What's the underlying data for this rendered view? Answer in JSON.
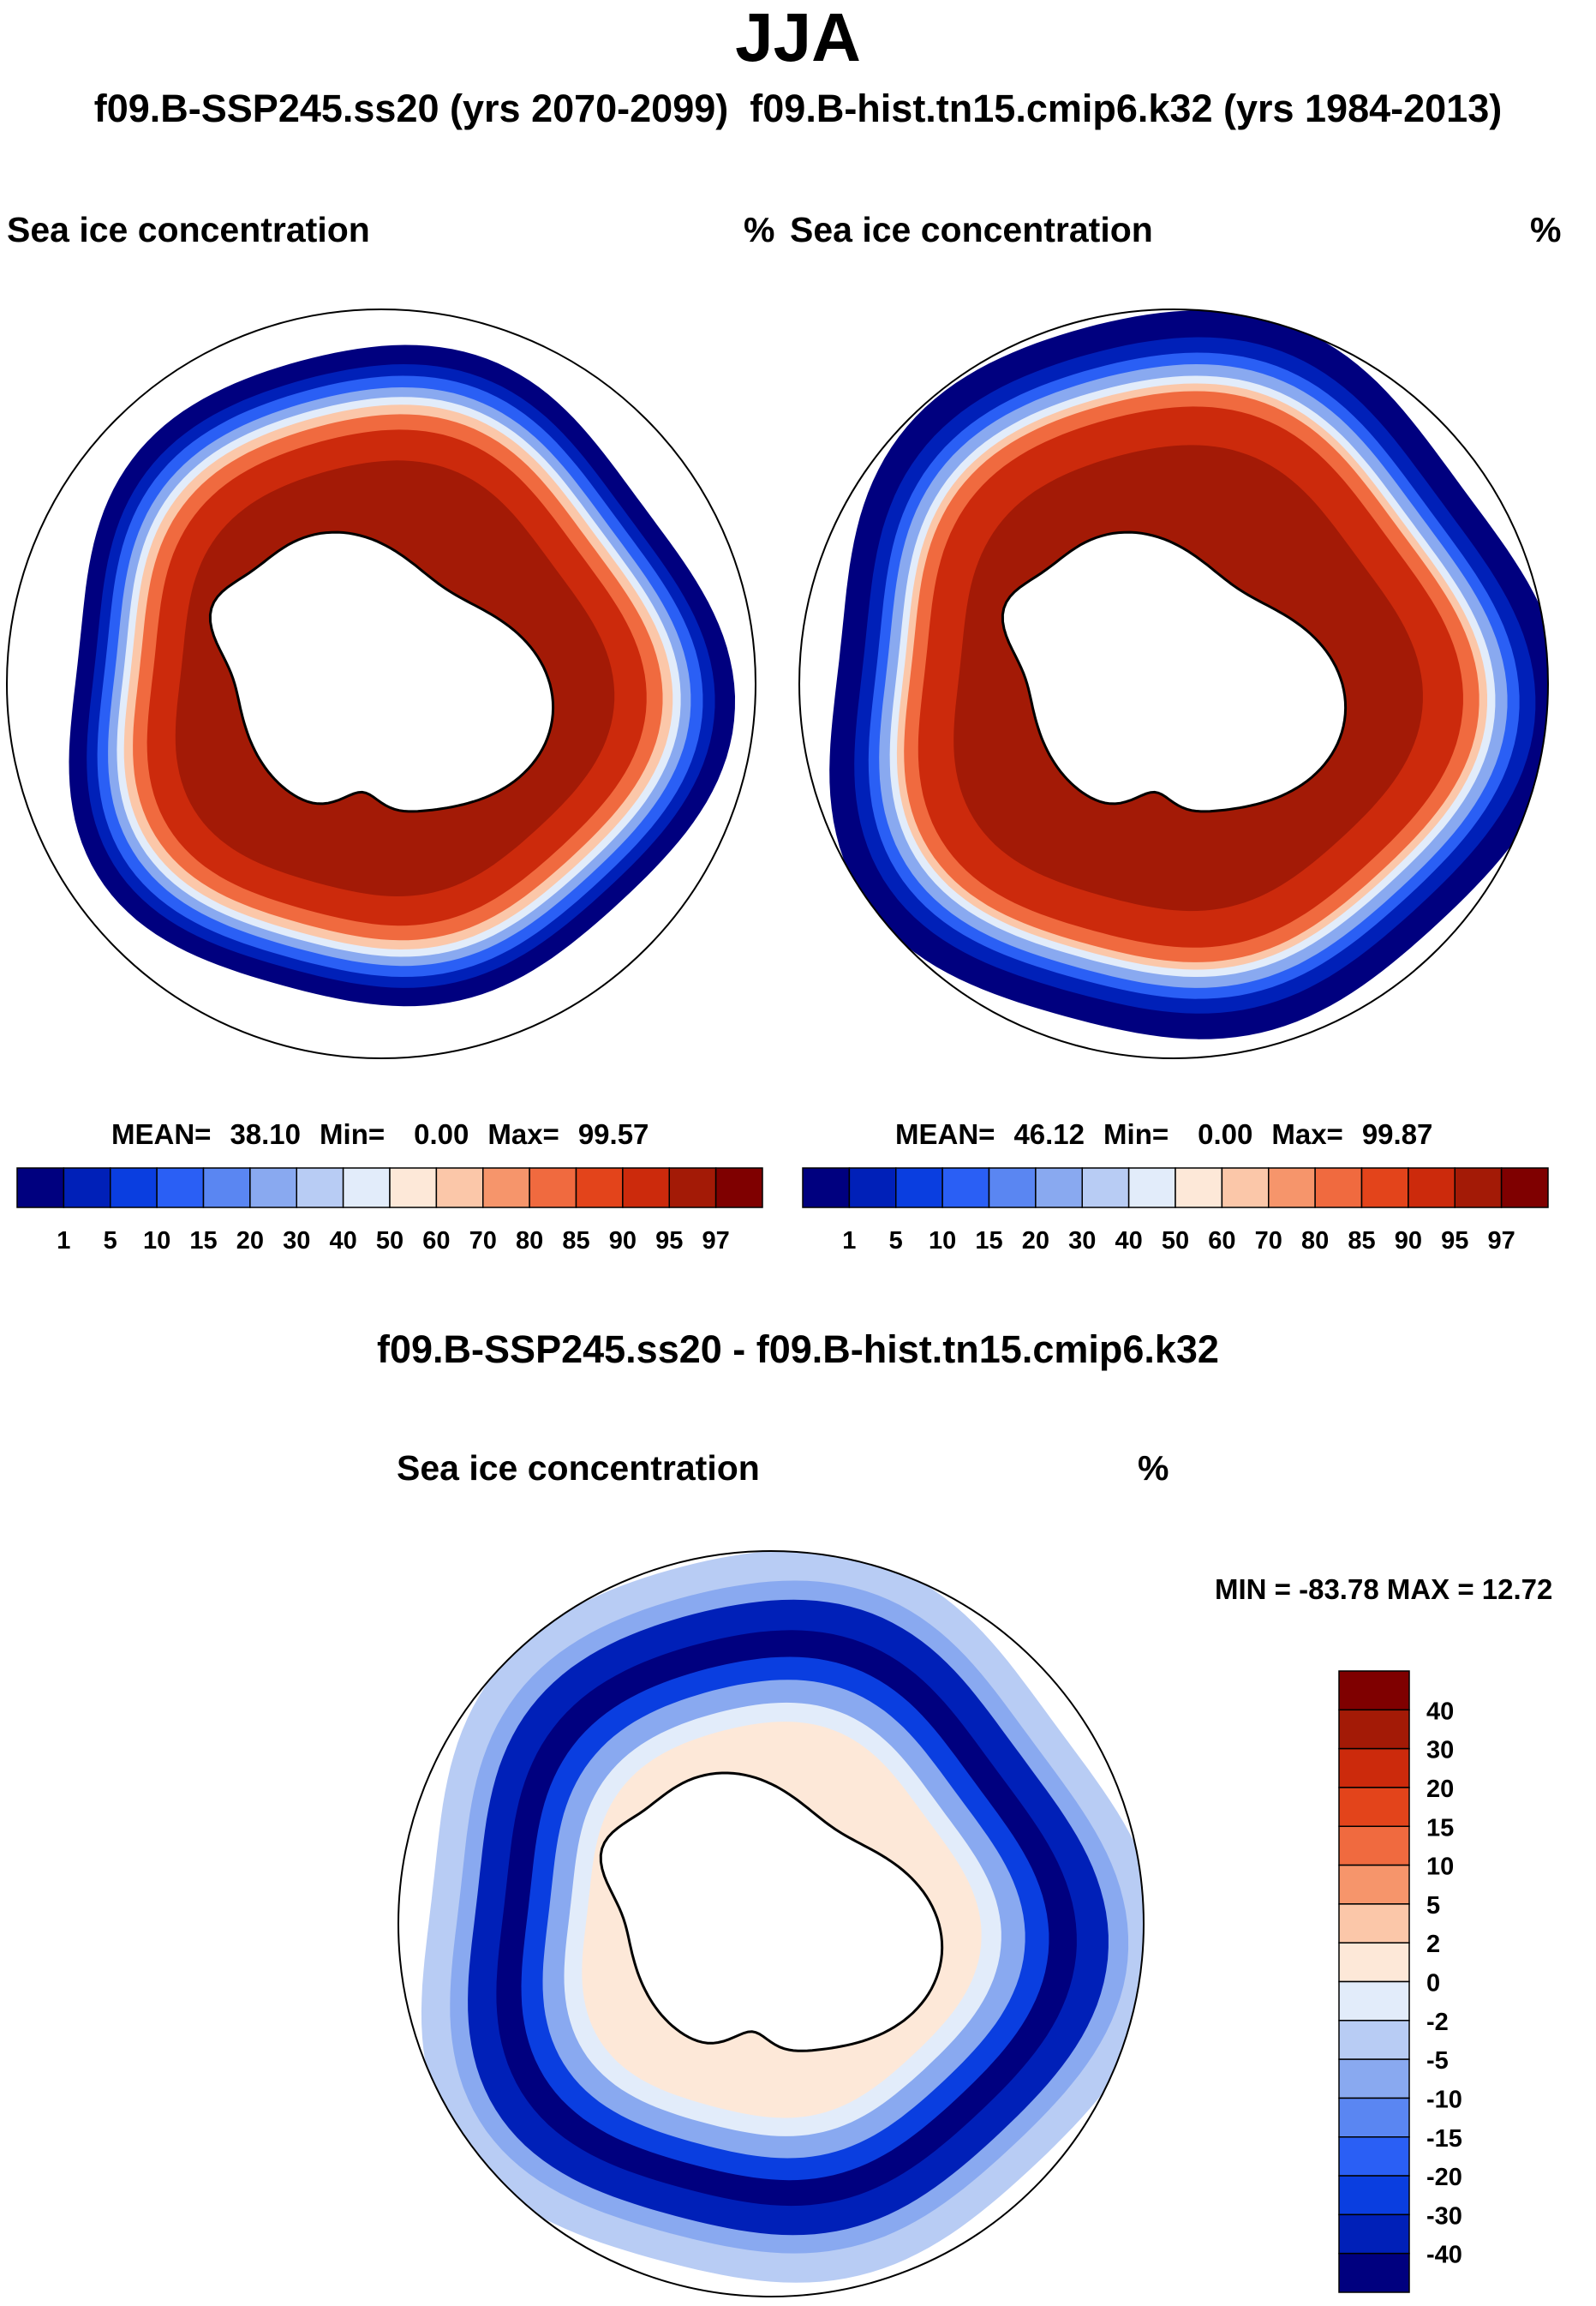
{
  "figure": {
    "title": "JJA",
    "subtitle_left": "f09.B-SSP245.ss20 (yrs 2070-2099)",
    "subtitle_right": "f09.B-hist.tn15.cmip6.k32 (yrs 1984-2013)",
    "diff_title": "f09.B-SSP245.ss20 - f09.B-hist.tn15.cmip6.k32"
  },
  "panels": [
    {
      "variable": "Sea ice concentration",
      "units": "%",
      "stats": {
        "mean_label": "MEAN=",
        "mean": "38.10",
        "min_label": "Min=",
        "min": "0.00",
        "max_label": "Max=",
        "max": "99.57"
      }
    },
    {
      "variable": "Sea ice concentration",
      "units": "%",
      "stats": {
        "mean_label": "MEAN=",
        "mean": "46.12",
        "min_label": "Min=",
        "min": "0.00",
        "max_label": "Max=",
        "max": "99.87"
      }
    },
    {
      "variable": "Sea ice concentration",
      "units": "%",
      "stats_text": "MIN = -83.78 MAX =  12.72"
    }
  ],
  "chart_data": [
    {
      "type": "heatmap",
      "projection": "south polar stereographic",
      "title": "Sea ice concentration",
      "units": "%",
      "period": "f09.B-SSP245.ss20 (yrs 2070-2099)",
      "mean": 38.1,
      "min": 0.0,
      "max": 99.57,
      "levels": [
        1,
        5,
        10,
        15,
        20,
        30,
        40,
        50,
        60,
        70,
        80,
        85,
        90,
        95,
        97
      ],
      "colors": [
        "#00007f",
        "#0020b8",
        "#0a3ee0",
        "#2a5ff5",
        "#5a86f2",
        "#89a9f0",
        "#b8ccf4",
        "#e2ecfa",
        "#fde8d8",
        "#fbc7a9",
        "#f6956b",
        "#f06a3f",
        "#e3441b",
        "#cc2a0c",
        "#a31a06",
        "#7f0000"
      ],
      "ice_edge": {
        "outer_radius_frac": 0.88,
        "inner_radius_frac": 0.66
      }
    },
    {
      "type": "heatmap",
      "projection": "south polar stereographic",
      "title": "Sea ice concentration",
      "units": "%",
      "period": "f09.B-hist.tn15.cmip6.k32 (yrs 1984-2013)",
      "mean": 46.12,
      "min": 0.0,
      "max": 99.87,
      "levels": [
        1,
        5,
        10,
        15,
        20,
        30,
        40,
        50,
        60,
        70,
        80,
        85,
        90,
        95,
        97
      ],
      "colors": [
        "#00007f",
        "#0020b8",
        "#0a3ee0",
        "#2a5ff5",
        "#5a86f2",
        "#89a9f0",
        "#b8ccf4",
        "#e2ecfa",
        "#fde8d8",
        "#fbc7a9",
        "#f6956b",
        "#f06a3f",
        "#e3441b",
        "#cc2a0c",
        "#a31a06",
        "#7f0000"
      ],
      "ice_edge": {
        "outer_radius_frac": 0.97,
        "inner_radius_frac": 0.74
      }
    },
    {
      "type": "heatmap",
      "projection": "south polar stereographic",
      "title": "Sea ice concentration",
      "units": "%",
      "period": "f09.B-SSP245.ss20 - f09.B-hist.tn15.cmip6.k32",
      "min": -83.78,
      "max": 12.72,
      "levels": [
        -40,
        -30,
        -20,
        -15,
        -10,
        -5,
        -2,
        0,
        2,
        5,
        10,
        15,
        20,
        30,
        40
      ],
      "colors": [
        "#00007f",
        "#0020b8",
        "#0a3ee0",
        "#2a5ff5",
        "#5a86f2",
        "#89a9f0",
        "#b8ccf4",
        "#e2ecfa",
        "#fde8d8",
        "#fbc7a9",
        "#f6956b",
        "#f06a3f",
        "#e3441b",
        "#cc2a0c",
        "#a31a06",
        "#7f0000"
      ]
    }
  ]
}
